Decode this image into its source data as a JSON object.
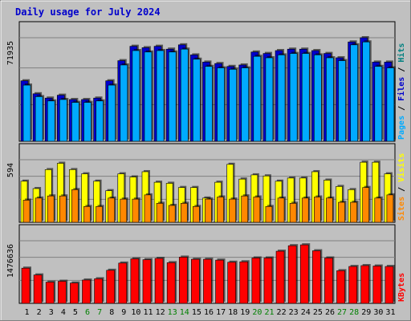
{
  "chart_data": {
    "type": "bar",
    "title": "Daily usage for July 2024",
    "x": [
      "1",
      "2",
      "3",
      "4",
      "5",
      "6",
      "7",
      "8",
      "9",
      "10",
      "11",
      "12",
      "13",
      "14",
      "15",
      "16",
      "17",
      "18",
      "19",
      "20",
      "21",
      "22",
      "23",
      "24",
      "25",
      "26",
      "27",
      "28",
      "29",
      "30",
      "31"
    ],
    "weekend_days": [
      "6",
      "7",
      "13",
      "14",
      "20",
      "21",
      "27",
      "28"
    ],
    "colors": {
      "pages": "#0000cc",
      "files": "#00aaff",
      "sites": "#ff8800",
      "visits": "#ffff00",
      "kbytes": "#ff0000",
      "hits": "#008080",
      "weekday": "#000000",
      "weekend": "#008000"
    },
    "panels": [
      {
        "name": "requests",
        "tick_label": "71935",
        "ymax": 71935,
        "series": [
          {
            "name": "Pages",
            "values": [
              42000,
              33000,
              30000,
              32000,
              29000,
              29000,
              30000,
              42000,
              56000,
              66000,
              65000,
              66000,
              64000,
              67000,
              60000,
              55000,
              54000,
              52000,
              53000,
              62000,
              61000,
              63000,
              64000,
              64000,
              63000,
              61000,
              58000,
              69000,
              71935,
              55000,
              55000
            ]
          },
          {
            "name": "Files",
            "values": [
              39000,
              31000,
              28000,
              29000,
              27000,
              27000,
              28000,
              39000,
              53000,
              63000,
              62000,
              63000,
              62000,
              64000,
              57000,
              52000,
              51000,
              50000,
              51000,
              59000,
              58000,
              60000,
              61000,
              61000,
              60000,
              58000,
              56000,
              67000,
              69000,
              52000,
              51000
            ]
          },
          {
            "name": "Hits",
            "values": [
              39000,
              31000,
              28000,
              29000,
              27000,
              27000,
              28000,
              39000,
              53000,
              63000,
              62000,
              63000,
              62000,
              64000,
              57000,
              52000,
              51000,
              50000,
              51000,
              59000,
              58000,
              60000,
              61000,
              61000,
              60000,
              58000,
              56000,
              67000,
              69000,
              52000,
              51000
            ]
          }
        ],
        "legend": [
          "Pages",
          "Files",
          "Hits"
        ]
      },
      {
        "name": "visitors",
        "tick_label": "594",
        "ymax": 594,
        "series": [
          {
            "name": "Visits",
            "values": [
              390,
              320,
              500,
              560,
              500,
              460,
              390,
              300,
              460,
              430,
              480,
              380,
              370,
              330,
              330,
              230,
              380,
              550,
              410,
              450,
              440,
              390,
              420,
              420,
              480,
              400,
              340,
              310,
              570,
              570,
              460
            ]
          },
          {
            "name": "Sites",
            "values": [
              210,
              230,
              250,
              250,
              310,
              150,
              150,
              230,
              220,
              220,
              260,
              180,
              160,
              180,
              150,
              220,
              240,
              220,
              250,
              240,
              150,
              230,
              180,
              230,
              240,
              230,
              190,
              190,
              330,
              230,
              260
            ]
          }
        ],
        "legend": [
          "Sites",
          "Visits"
        ]
      },
      {
        "name": "kbytes",
        "tick_label": "1476636",
        "ymax": 1476636,
        "series": [
          {
            "name": "KBytes",
            "values": [
              830000,
              670000,
              500000,
              520000,
              480000,
              550000,
              580000,
              780000,
              950000,
              1050000,
              1030000,
              1060000,
              960000,
              1090000,
              1040000,
              1040000,
              1020000,
              970000,
              980000,
              1070000,
              1070000,
              1230000,
              1360000,
              1380000,
              1240000,
              1070000,
              770000,
              870000,
              890000,
              880000,
              870000
            ]
          }
        ],
        "legend": [
          "KBytes"
        ]
      }
    ]
  }
}
